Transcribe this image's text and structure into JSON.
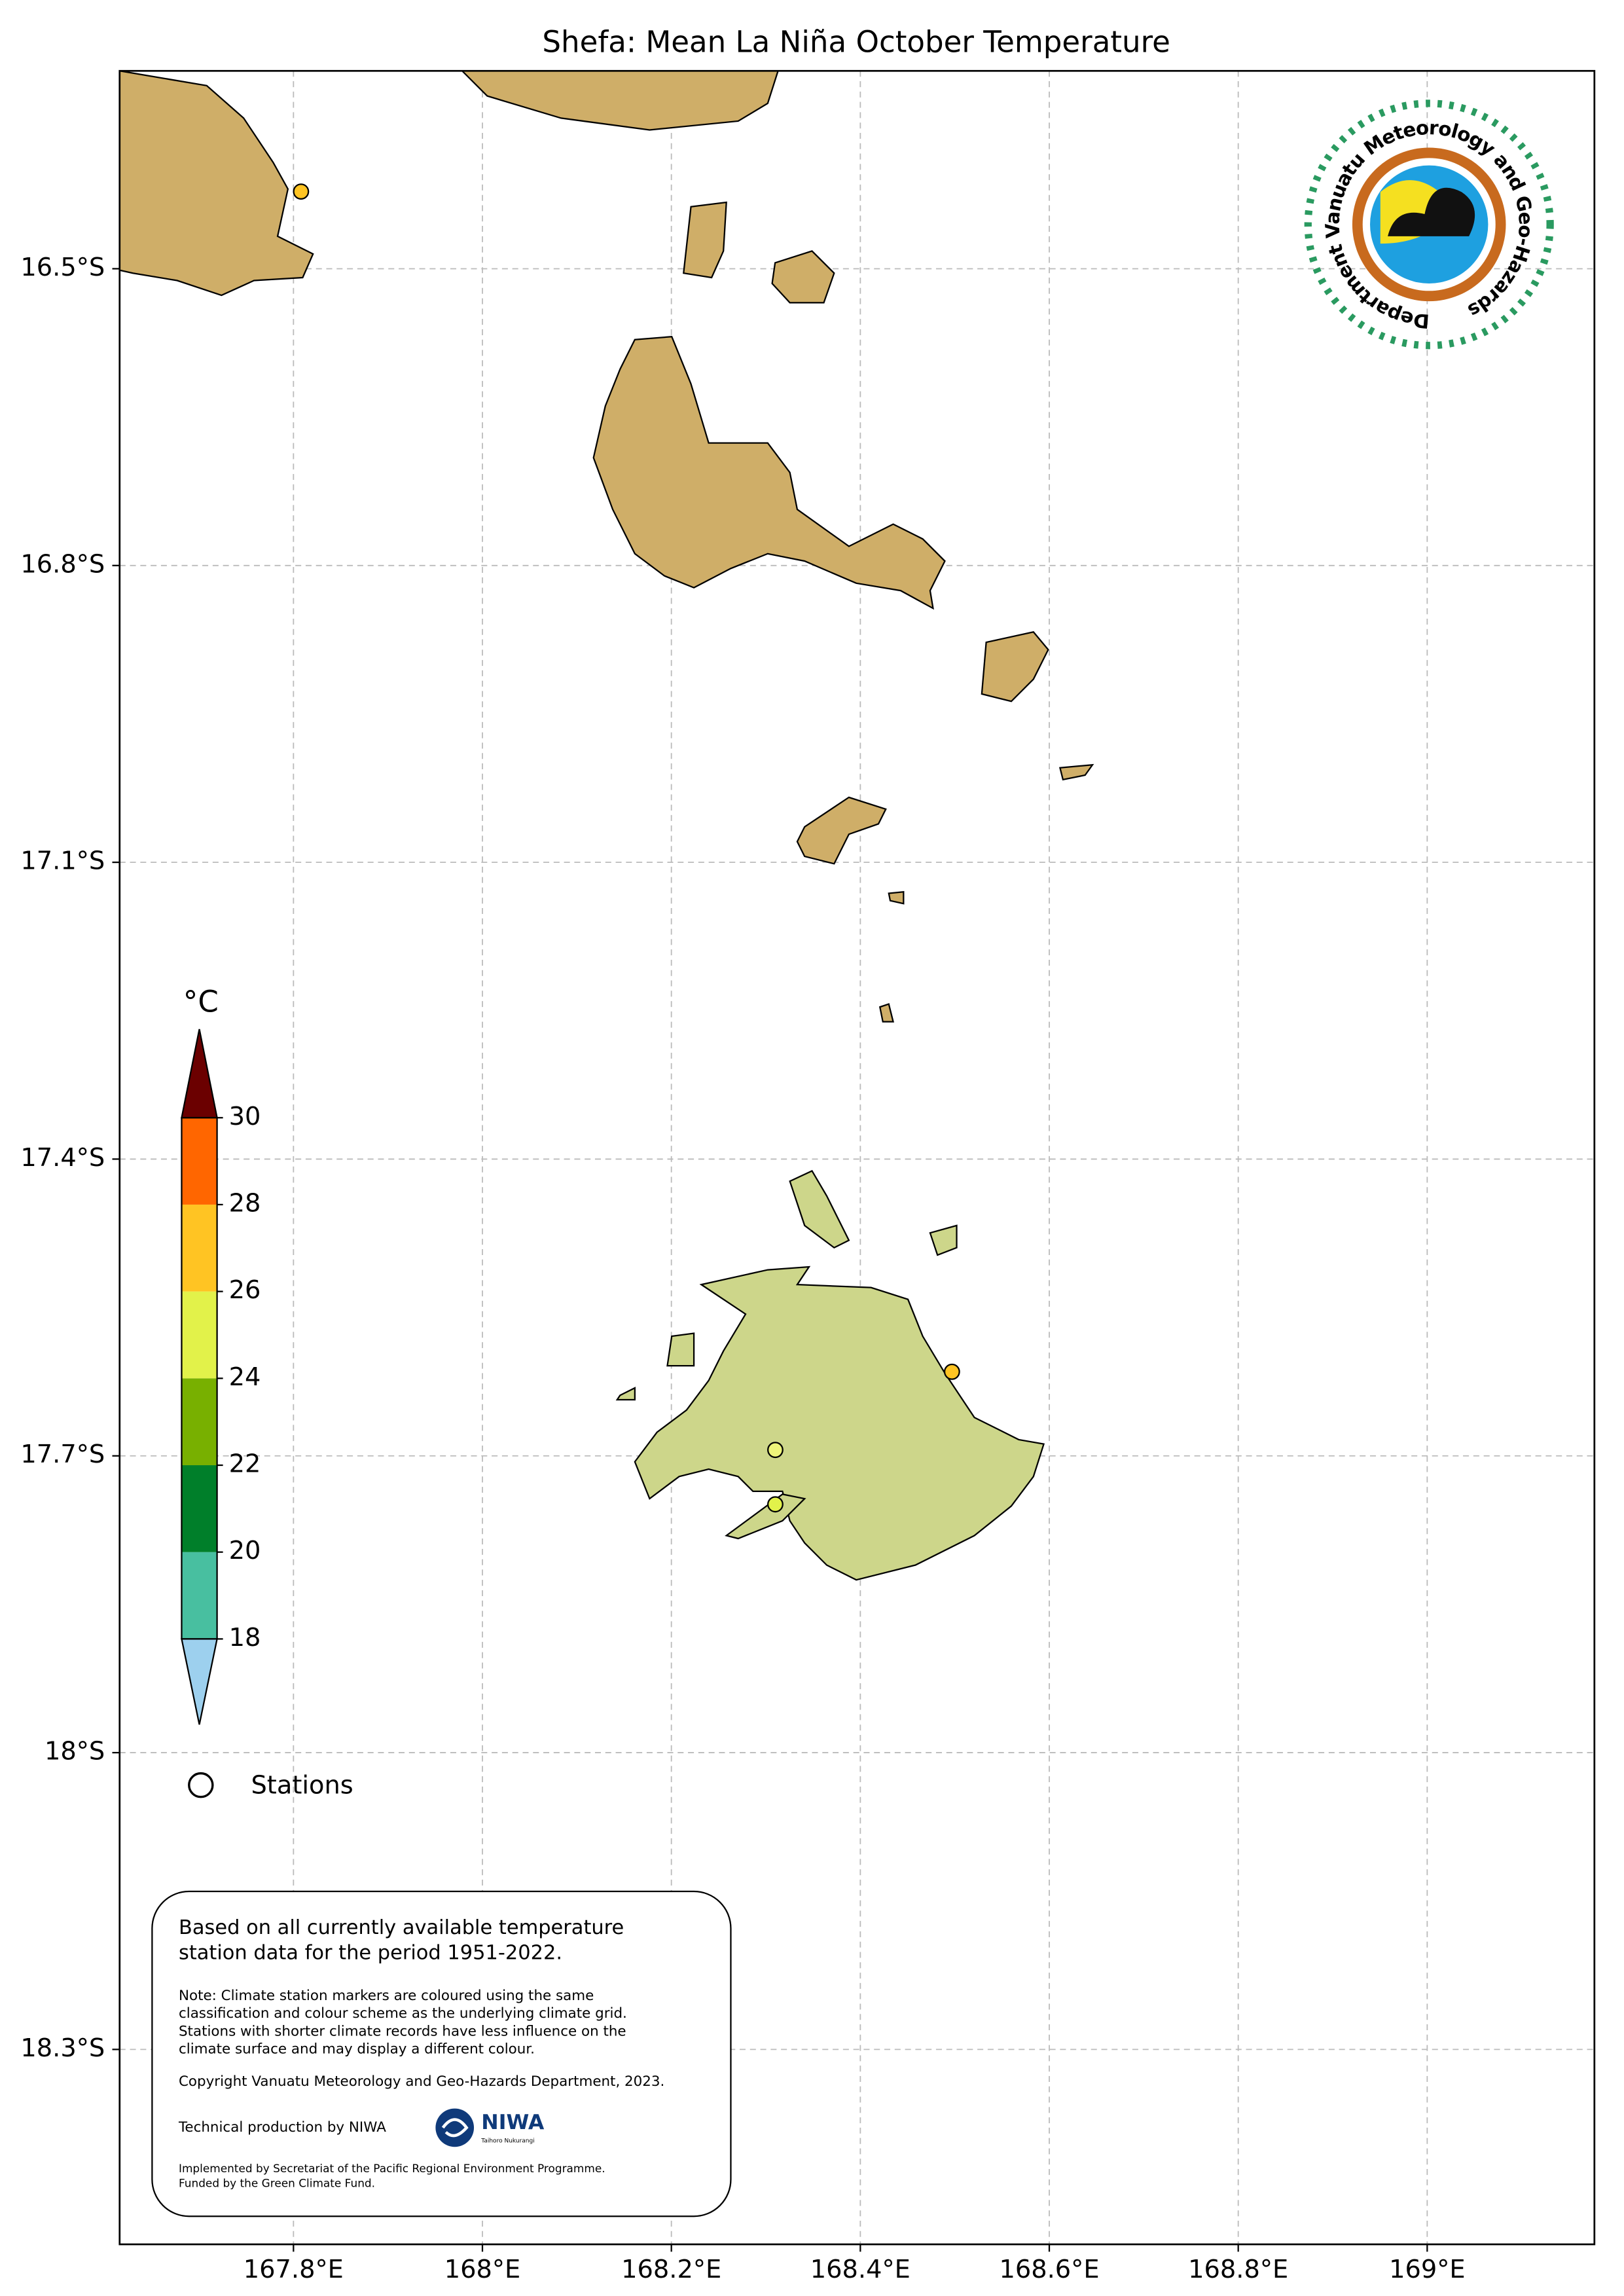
{
  "chart_data": {
    "type": "map",
    "title": "Shefa: Mean La Niña October Temperature",
    "xlim": [
      167.616,
      169.177
    ],
    "ylim": [
      16.3,
      18.497
    ],
    "xticks": [
      {
        "value": 167.8,
        "label": "167.8°E"
      },
      {
        "value": 168,
        "label": "168°E"
      },
      {
        "value": 168.2,
        "label": "168.2°E"
      },
      {
        "value": 168.4,
        "label": "168.4°E"
      },
      {
        "value": 168.6,
        "label": "168.6°E"
      },
      {
        "value": 168.8,
        "label": "168.8°E"
      },
      {
        "value": 169,
        "label": "169°E"
      }
    ],
    "yticks": [
      {
        "value": 16.5,
        "label": "16.5°S"
      },
      {
        "value": 16.8,
        "label": "16.8°S"
      },
      {
        "value": 17.1,
        "label": "17.1°S"
      },
      {
        "value": 17.4,
        "label": "17.4°S"
      },
      {
        "value": 17.7,
        "label": "17.7°S"
      },
      {
        "value": 18,
        "label": "18°S"
      },
      {
        "value": 18.3,
        "label": "18.3°S"
      }
    ],
    "grid": true,
    "colorbar": {
      "label": "°C",
      "ticks": [
        18,
        20,
        22,
        24,
        26,
        28,
        30
      ],
      "colors": [
        "#48bfa0",
        "#007f2a",
        "#78b000",
        "#e2f24a",
        "#ffc423",
        "#ff6600"
      ],
      "under_color": "#9dd0ee",
      "over_color": "#6b0000"
    },
    "stations": {
      "name": "Stations",
      "lon": [
        167.808,
        168.497,
        168.31,
        168.31
      ],
      "lat": [
        16.422,
        17.615,
        17.694,
        17.749
      ],
      "colors": [
        "#ffc423",
        "#ffc423",
        "#eef57a",
        "#e2f24a"
      ]
    }
  },
  "note": {
    "main": [
      "Based on all currently available temperature",
      "station data for the period 1951-2022."
    ],
    "detail": [
      "Note: Climate station markers are coloured using the same",
      "classification and colour scheme as the underlying climate grid.",
      "Stations with shorter climate records have less influence on the",
      "climate surface and may display a different colour."
    ],
    "copyright": "Copyright Vanuatu Meteorology and Geo-Hazards Department, 2023.",
    "production": "Technical production by NIWA",
    "funding": [
      "Implemented by Secretariat of the Pacific Regional Environment Programme.",
      "Funded by the Green Climate Fund."
    ]
  },
  "logo": {
    "text": "Department Vanuatu Meteorology and Geo-Hazards"
  },
  "niwa": {
    "name": "NIWA",
    "subtitle": "Taihoro Nukurangi"
  }
}
